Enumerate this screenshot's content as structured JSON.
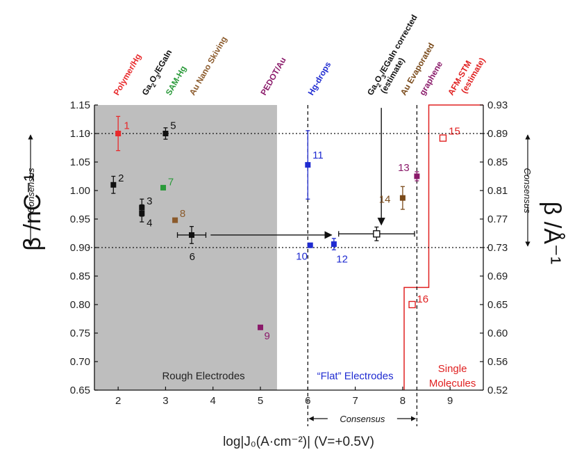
{
  "chart_data": {
    "type": "scatter",
    "xlabel": "log|J₀(A·cm⁻²)| (V=+0.5V)",
    "ylabel_left": "β /nC⁻¹",
    "ylabel_right": "β /Å⁻¹",
    "xlim": [
      1.5,
      9.7
    ],
    "ylim_left": [
      0.65,
      1.15
    ],
    "ylim_right": [
      0.52,
      0.93
    ],
    "x_ticks": [
      2,
      3,
      4,
      5,
      6,
      7,
      8,
      9
    ],
    "y_ticks_left": [
      0.65,
      0.7,
      0.75,
      0.8,
      0.85,
      0.9,
      0.95,
      1.0,
      1.05,
      1.1,
      1.15
    ],
    "y_ticks_right": [
      0.52,
      0.56,
      0.6,
      0.65,
      0.69,
      0.73,
      0.77,
      0.81,
      0.85,
      0.89,
      0.93
    ],
    "tick_labels_left": [
      "0.65",
      "0.70",
      "0.75",
      "0.80",
      "0.85",
      "0.90",
      "0.95",
      "1.00",
      "1.05",
      "1.10",
      "1.15"
    ],
    "tick_labels_right": [
      "0.52",
      "0.56",
      "0.60",
      "0.65",
      "0.69",
      "0.73",
      "0.77",
      "0.81",
      "0.85",
      "0.89",
      "0.93"
    ],
    "shaded_region": {
      "x": [
        1.5,
        5.35
      ],
      "color": "#bebebe",
      "label": "Rough Electrodes"
    },
    "region_labels": [
      {
        "text": "Rough Electrodes",
        "x": 3.8,
        "y": 0.675,
        "color": "#222222"
      },
      {
        "text": "“Flat” Electrodes",
        "x": 7.0,
        "y": 0.675,
        "color": "#1f2bd1"
      },
      {
        "text": "Single",
        "x": 9.05,
        "y": 0.688,
        "color": "#e02020"
      },
      {
        "text": "Molecules",
        "x": 9.05,
        "y": 0.662,
        "color": "#e02020"
      }
    ],
    "consensus_lines": {
      "y": [
        0.9,
        1.1
      ],
      "x": [
        6.0,
        8.3
      ]
    },
    "consensus_labels": {
      "left": "Consensus",
      "right": "Consensus",
      "bottom": "Consensus"
    },
    "points": [
      {
        "id": "1",
        "x": 2.0,
        "y": 1.1,
        "yerr": 0.03,
        "color": "#e8282a",
        "filled": true
      },
      {
        "id": "2",
        "x": 1.9,
        "y": 1.01,
        "yerr": 0.015,
        "color": "#111111",
        "filled": true
      },
      {
        "id": "3",
        "x": 2.5,
        "y": 0.97,
        "yerr": 0.015,
        "color": "#111111",
        "filled": true
      },
      {
        "id": "4",
        "x": 2.5,
        "y": 0.96,
        "yerr": 0.015,
        "color": "#111111",
        "filled": true
      },
      {
        "id": "5",
        "x": 3.0,
        "y": 1.1,
        "yerr": 0.01,
        "color": "#111111",
        "filled": true
      },
      {
        "id": "6",
        "x": 3.55,
        "y": 0.922,
        "yerr": 0.015,
        "xerr": 0.3,
        "color": "#111111",
        "filled": true
      },
      {
        "id": "7",
        "x": 2.95,
        "y": 1.005,
        "color": "#2a9a3a",
        "filled": true
      },
      {
        "id": "8",
        "x": 3.2,
        "y": 0.948,
        "color": "#8b5a2b",
        "filled": true
      },
      {
        "id": "9",
        "x": 5.0,
        "y": 0.76,
        "color": "#8a1a6a",
        "filled": true
      },
      {
        "id": "10",
        "x": 6.05,
        "y": 0.904,
        "color": "#1f2bd1",
        "filled": true
      },
      {
        "id": "11",
        "x": 6.0,
        "y": 1.045,
        "yerr": 0.06,
        "color": "#1f2bd1",
        "filled": true
      },
      {
        "id": "12",
        "x": 6.55,
        "y": 0.906,
        "yerr": 0.01,
        "color": "#1f2bd1",
        "filled": true
      },
      {
        "id": "13",
        "x": 8.3,
        "y": 1.025,
        "yerr": 0.008,
        "color": "#8a1a6a",
        "filled": true
      },
      {
        "id": "14",
        "x": 8.0,
        "y": 0.987,
        "yerr": 0.02,
        "color": "#7a4a1a",
        "filled": true
      },
      {
        "id": "15",
        "x": 8.85,
        "y": 1.092,
        "color": "#e02020",
        "filled": false
      },
      {
        "id": "16",
        "x": 8.2,
        "y": 0.8,
        "color": "#e02020",
        "filled": false
      },
      {
        "id": "",
        "x": 7.45,
        "y": 0.924,
        "yerr": 0.012,
        "xerr": 0.8,
        "color": "#111111",
        "filled": false
      }
    ],
    "point_labels": [
      {
        "text": "1",
        "x": 2.12,
        "y": 1.114,
        "color": "#e8282a"
      },
      {
        "text": "2",
        "x": 2.0,
        "y": 1.022,
        "color": "#111111"
      },
      {
        "text": "3",
        "x": 2.6,
        "y": 0.982,
        "color": "#111111"
      },
      {
        "text": "4",
        "x": 2.6,
        "y": 0.943,
        "color": "#111111"
      },
      {
        "text": "5",
        "x": 3.1,
        "y": 1.114,
        "color": "#111111"
      },
      {
        "text": "6",
        "x": 3.5,
        "y": 0.884,
        "color": "#111111"
      },
      {
        "text": "7",
        "x": 3.05,
        "y": 1.015,
        "color": "#2a9a3a"
      },
      {
        "text": "8",
        "x": 3.3,
        "y": 0.96,
        "color": "#8b5a2b"
      },
      {
        "text": "9",
        "x": 5.08,
        "y": 0.745,
        "color": "#8a1a6a"
      },
      {
        "text": "10",
        "x": 5.75,
        "y": 0.885,
        "color": "#1f2bd1"
      },
      {
        "text": "11",
        "x": 6.1,
        "y": 1.062,
        "color": "#1f2bd1"
      },
      {
        "text": "12",
        "x": 6.6,
        "y": 0.88,
        "color": "#1f2bd1"
      },
      {
        "text": "13",
        "x": 7.9,
        "y": 1.04,
        "color": "#8a1a6a"
      },
      {
        "text": "14",
        "x": 7.5,
        "y": 0.985,
        "color": "#7a4a1a"
      },
      {
        "text": "15",
        "x": 8.97,
        "y": 1.104,
        "color": "#e02020"
      },
      {
        "text": "16",
        "x": 8.3,
        "y": 0.81,
        "color": "#e02020"
      }
    ],
    "top_labels": [
      {
        "main": "Polymer/Hg",
        "x": 2.0,
        "color": "#e8282a"
      },
      {
        "main": "Ga",
        "sub1": "2",
        "mid": "O",
        "sub2": "3",
        "tail": "/EGaIn",
        "x": 2.6,
        "color": "#111111"
      },
      {
        "main": "SAM-Hg",
        "x": 3.1,
        "color": "#2a9a3a"
      },
      {
        "main": "Au Nano Skiving",
        "x": 3.6,
        "color": "#8b5a2b"
      },
      {
        "main": "PEDOT/Au",
        "x": 5.1,
        "color": "#8a1a6a"
      },
      {
        "main": "Hg-drops",
        "x": 6.1,
        "color": "#1f2bd1"
      },
      {
        "main": "Ga",
        "sub1": "2",
        "mid": "O",
        "sub2": "3",
        "tail": "/EGaIn corrected",
        "line2": "(estimate)",
        "x": 7.35,
        "color": "#111111"
      },
      {
        "main": "Au Evaporated",
        "x": 8.05,
        "color": "#7a4a1a"
      },
      {
        "main": "graphene",
        "x": 8.45,
        "color": "#8a1a6a"
      },
      {
        "main": "AFM-STM",
        "line2": "(estimate)",
        "x": 9.05,
        "color": "#e02020"
      }
    ],
    "arrows": [
      {
        "from": [
          3.95,
          0.922
        ],
        "to": [
          6.5,
          0.922
        ]
      },
      {
        "from": [
          7.55,
          1.145
        ],
        "to": [
          7.55,
          0.94
        ]
      }
    ],
    "single_molecule_boundary": [
      [
        8.03,
        0.65
      ],
      [
        8.03,
        0.83
      ],
      [
        8.55,
        0.83
      ],
      [
        8.55,
        1.15
      ],
      [
        9.7,
        1.15
      ]
    ]
  }
}
